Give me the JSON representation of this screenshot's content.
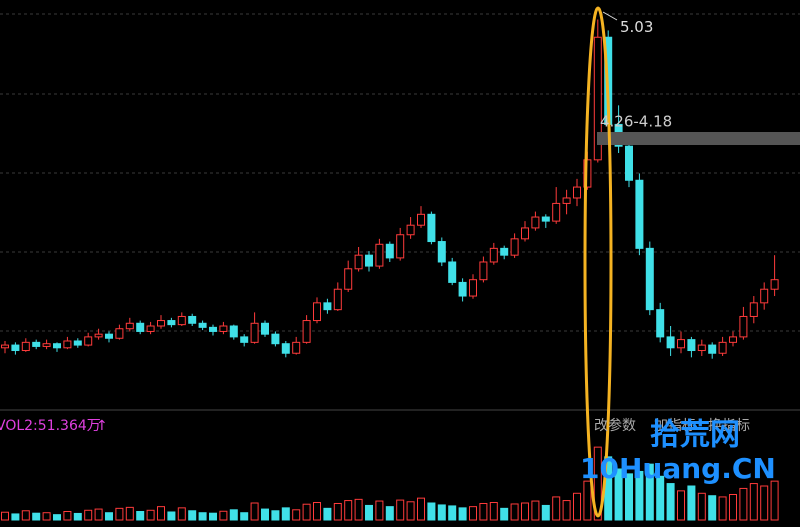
{
  "chart_data": {
    "type": "candlestick",
    "candles": [
      [
        2.62,
        2.67,
        2.58,
        2.64
      ],
      [
        2.64,
        2.66,
        2.57,
        2.6
      ],
      [
        2.6,
        2.69,
        2.59,
        2.66
      ],
      [
        2.66,
        2.68,
        2.61,
        2.63
      ],
      [
        2.63,
        2.68,
        2.61,
        2.65
      ],
      [
        2.65,
        2.66,
        2.59,
        2.62
      ],
      [
        2.62,
        2.7,
        2.61,
        2.67
      ],
      [
        2.67,
        2.69,
        2.62,
        2.64
      ],
      [
        2.64,
        2.73,
        2.63,
        2.7
      ],
      [
        2.7,
        2.76,
        2.68,
        2.72
      ],
      [
        2.72,
        2.74,
        2.66,
        2.69
      ],
      [
        2.69,
        2.79,
        2.68,
        2.76
      ],
      [
        2.76,
        2.84,
        2.74,
        2.8
      ],
      [
        2.8,
        2.82,
        2.72,
        2.74
      ],
      [
        2.74,
        2.81,
        2.72,
        2.78
      ],
      [
        2.78,
        2.86,
        2.76,
        2.82
      ],
      [
        2.82,
        2.84,
        2.77,
        2.79
      ],
      [
        2.79,
        2.88,
        2.78,
        2.85
      ],
      [
        2.85,
        2.87,
        2.78,
        2.8
      ],
      [
        2.8,
        2.82,
        2.75,
        2.77
      ],
      [
        2.77,
        2.79,
        2.71,
        2.74
      ],
      [
        2.74,
        2.81,
        2.72,
        2.78
      ],
      [
        2.78,
        2.79,
        2.68,
        2.7
      ],
      [
        2.7,
        2.72,
        2.63,
        2.66
      ],
      [
        2.66,
        2.88,
        2.65,
        2.8
      ],
      [
        2.8,
        2.82,
        2.7,
        2.72
      ],
      [
        2.72,
        2.74,
        2.63,
        2.65
      ],
      [
        2.65,
        2.67,
        2.55,
        2.58
      ],
      [
        2.58,
        2.7,
        2.57,
        2.66
      ],
      [
        2.66,
        2.86,
        2.65,
        2.82
      ],
      [
        2.82,
        2.99,
        2.8,
        2.95
      ],
      [
        2.95,
        2.98,
        2.87,
        2.9
      ],
      [
        2.9,
        3.1,
        2.89,
        3.05
      ],
      [
        3.05,
        3.26,
        3.03,
        3.2
      ],
      [
        3.2,
        3.36,
        3.18,
        3.3
      ],
      [
        3.3,
        3.33,
        3.18,
        3.22
      ],
      [
        3.22,
        3.42,
        3.2,
        3.38
      ],
      [
        3.38,
        3.4,
        3.25,
        3.28
      ],
      [
        3.28,
        3.5,
        3.26,
        3.45
      ],
      [
        3.45,
        3.58,
        3.42,
        3.52
      ],
      [
        3.52,
        3.66,
        3.5,
        3.6
      ],
      [
        3.6,
        3.62,
        3.38,
        3.4
      ],
      [
        3.4,
        3.43,
        3.22,
        3.25
      ],
      [
        3.25,
        3.28,
        3.08,
        3.1
      ],
      [
        3.1,
        3.13,
        2.96,
        3.0
      ],
      [
        3.0,
        3.16,
        2.98,
        3.12
      ],
      [
        3.12,
        3.29,
        3.1,
        3.25
      ],
      [
        3.25,
        3.39,
        3.23,
        3.35
      ],
      [
        3.35,
        3.37,
        3.27,
        3.3
      ],
      [
        3.3,
        3.46,
        3.28,
        3.42
      ],
      [
        3.42,
        3.55,
        3.4,
        3.5
      ],
      [
        3.5,
        3.62,
        3.48,
        3.58
      ],
      [
        3.58,
        3.6,
        3.5,
        3.55
      ],
      [
        3.55,
        3.8,
        3.53,
        3.68
      ],
      [
        3.68,
        3.78,
        3.6,
        3.72
      ],
      [
        3.72,
        3.86,
        3.66,
        3.8
      ],
      [
        3.8,
        4.06,
        3.78,
        4.0
      ],
      [
        4.0,
        5.03,
        3.98,
        4.9
      ],
      [
        4.9,
        4.95,
        4.18,
        4.26
      ],
      [
        4.26,
        4.4,
        4.05,
        4.1
      ],
      [
        4.1,
        4.2,
        3.8,
        3.85
      ],
      [
        3.85,
        3.9,
        3.3,
        3.35
      ],
      [
        3.35,
        3.4,
        2.86,
        2.9
      ],
      [
        2.9,
        2.95,
        2.66,
        2.7
      ],
      [
        2.7,
        2.78,
        2.56,
        2.62
      ],
      [
        2.62,
        2.74,
        2.58,
        2.68
      ],
      [
        2.68,
        2.7,
        2.55,
        2.6
      ],
      [
        2.6,
        2.68,
        2.56,
        2.64
      ],
      [
        2.64,
        2.66,
        2.54,
        2.58
      ],
      [
        2.58,
        2.7,
        2.56,
        2.66
      ],
      [
        2.66,
        2.74,
        2.63,
        2.7
      ],
      [
        2.7,
        2.92,
        2.68,
        2.85
      ],
      [
        2.85,
        3.0,
        2.8,
        2.95
      ],
      [
        2.95,
        3.1,
        2.9,
        3.05
      ],
      [
        3.05,
        3.3,
        3.0,
        3.12
      ]
    ],
    "volumes": [
      32,
      25,
      38,
      28,
      30,
      22,
      35,
      27,
      40,
      45,
      30,
      48,
      52,
      35,
      40,
      55,
      33,
      50,
      38,
      30,
      28,
      36,
      42,
      30,
      70,
      45,
      38,
      50,
      42,
      65,
      72,
      48,
      68,
      80,
      85,
      60,
      78,
      55,
      82,
      75,
      90,
      70,
      62,
      58,
      50,
      55,
      68,
      72,
      48,
      66,
      70,
      78,
      60,
      95,
      80,
      110,
      160,
      300,
      260,
      210,
      190,
      200,
      230,
      180,
      150,
      120,
      140,
      110,
      100,
      95,
      105,
      130,
      150,
      140,
      160
    ],
    "ylim": [
      2.2,
      5.1
    ],
    "vol_lim": [
      0,
      350
    ],
    "up_color": "#ff3b3b",
    "down_color": "#40e0e8",
    "peak_index": 57,
    "range_label": "4.26-4.18",
    "vol_label": "VOL2:51.364万",
    "vol_arrow": "↑",
    "buttons": [
      "改参数",
      "加指标",
      "换指标"
    ],
    "watermark": {
      "title": "拾荒网",
      "site": "10Huang.CN"
    }
  }
}
